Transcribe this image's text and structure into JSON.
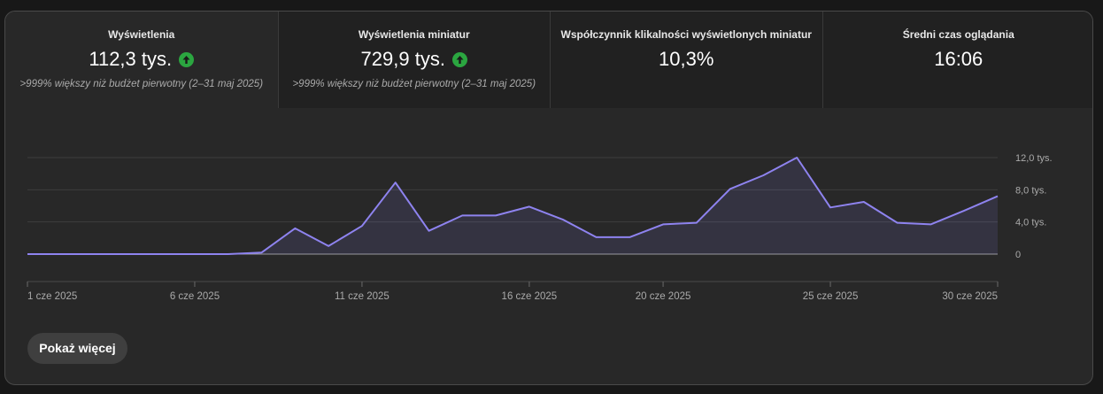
{
  "metrics": [
    {
      "label": "Wyświetlenia",
      "value": "112,3 tys.",
      "trend": "up-arrow-icon",
      "note": ">999% większy niż budżet pierwotny (2–31 maj 2025)"
    },
    {
      "label": "Wyświetlenia miniatur",
      "value": "729,9 tys.",
      "trend": "up-arrow-icon",
      "note": ">999% większy niż budżet pierwotny (2–31 maj 2025)"
    },
    {
      "label": "Współczynnik klikalności wyświetlonych miniatur",
      "value": "10,3%"
    },
    {
      "label": "Średni czas oglądania",
      "value": "16:06"
    }
  ],
  "chart_data": {
    "type": "area",
    "x": [
      "1 cze",
      "2 cze",
      "3 cze",
      "4 cze",
      "5 cze",
      "6 cze",
      "7 cze",
      "8 cze",
      "9 cze",
      "10 cze",
      "11 cze",
      "12 cze",
      "13 cze",
      "14 cze",
      "15 cze",
      "16 cze",
      "17 cze",
      "18 cze",
      "19 cze",
      "20 cze",
      "21 cze",
      "22 cze",
      "23 cze",
      "24 cze",
      "25 cze",
      "26 cze",
      "27 cze",
      "28 cze",
      "29 cze",
      "30 cze"
    ],
    "values": [
      0,
      0,
      0,
      0,
      0,
      0,
      0,
      200,
      3200,
      1000,
      3500,
      8900,
      2900,
      4800,
      4800,
      5900,
      4300,
      2100,
      2100,
      3700,
      3900,
      8100,
      9800,
      12000,
      5800,
      6500,
      3900,
      3700,
      5400,
      7200
    ],
    "x_ticks": [
      {
        "index": 0,
        "label": "1 cze 2025"
      },
      {
        "index": 5,
        "label": "6 cze 2025"
      },
      {
        "index": 10,
        "label": "11 cze 2025"
      },
      {
        "index": 15,
        "label": "16 cze 2025"
      },
      {
        "index": 19,
        "label": "20 cze 2025"
      },
      {
        "index": 24,
        "label": "25 cze 2025"
      },
      {
        "index": 29,
        "label": "30 cze 2025"
      }
    ],
    "y_ticks": [
      {
        "value": 0,
        "label": "0"
      },
      {
        "value": 4000,
        "label": "4,0 tys."
      },
      {
        "value": 8000,
        "label": "8,0 tys."
      },
      {
        "value": 12000,
        "label": "12,0 tys."
      }
    ],
    "ylim": [
      0,
      12000
    ],
    "grid": true,
    "color": "#8e83ef"
  },
  "actions": {
    "show_more": "Pokaż więcej"
  }
}
